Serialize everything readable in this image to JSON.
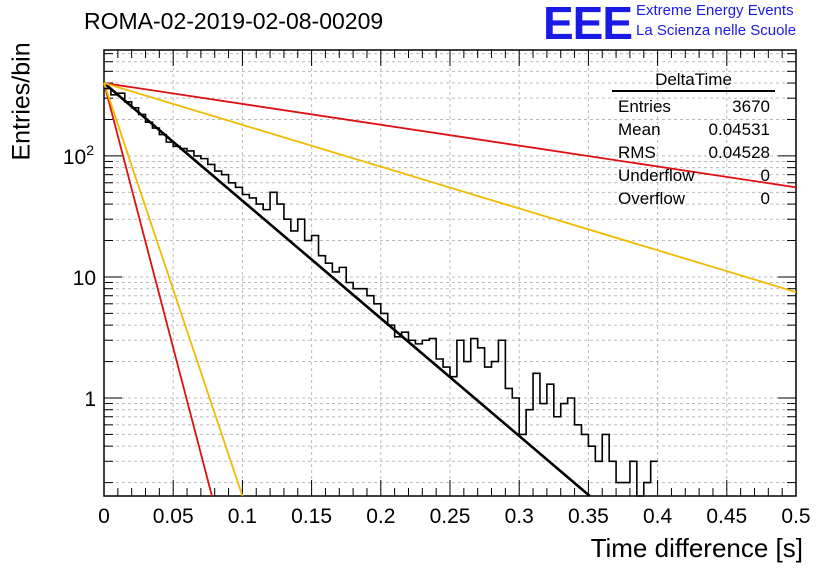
{
  "header": {
    "title": "ROMA-02-2019-02-08-00209",
    "logo": "EEE",
    "logo_line1": "Extreme Energy Events",
    "logo_line2": "La Scienza nelle Scuole"
  },
  "stats": {
    "name": "DeltaTime",
    "rows": [
      {
        "label": "Entries",
        "value": "3670"
      },
      {
        "label": "Mean",
        "value": "0.04531"
      },
      {
        "label": "RMS",
        "value": "0.04528"
      },
      {
        "label": "Underflow",
        "value": "0"
      },
      {
        "label": "Overflow",
        "value": "0"
      }
    ]
  },
  "colors": {
    "histogram": "#000000",
    "fit": "#000000",
    "red": "#dd1111",
    "yellow": "#f0bb00",
    "grid": "#bbbbbb"
  },
  "chart_data": {
    "type": "line",
    "xlabel": "Time difference [s]",
    "ylabel": "Entries/bin",
    "xlim": [
      0,
      0.5
    ],
    "ylim": [
      0.155,
      750
    ],
    "yscale": "log",
    "grid": true,
    "x_ticks": [
      "0",
      "0.05",
      "0.1",
      "0.15",
      "0.2",
      "0.25",
      "0.3",
      "0.35",
      "0.4",
      "0.45",
      "0.5"
    ],
    "y_ticks": [
      "1",
      "10",
      "10^2"
    ],
    "histogram": {
      "bin_width": 0.005,
      "values": [
        360,
        320,
        330,
        280,
        250,
        220,
        190,
        170,
        150,
        130,
        120,
        115,
        110,
        100,
        95,
        85,
        75,
        70,
        60,
        55,
        48,
        45,
        40,
        36,
        50,
        40,
        30,
        24,
        30,
        20,
        22,
        15,
        13,
        11,
        12,
        9,
        8,
        8,
        7,
        6,
        5,
        4,
        3.2,
        3.5,
        3,
        2.8,
        3.0,
        3.1,
        2.1,
        1.8,
        1.5,
        3.0,
        2.0,
        3.1,
        2.6,
        1.8,
        2.0,
        3.0,
        1.2,
        1.0,
        0.5,
        0.8,
        1.6,
        0.9,
        1.3,
        0.7,
        0.9,
        1.0,
        0.6,
        0.5,
        0.4,
        0.3,
        0.5,
        0.3,
        0.2,
        0.2,
        0.3,
        0.1,
        0.2,
        0.3
      ]
    },
    "series": [
      {
        "x": [
          0.0,
          0.351
        ],
        "y": [
          400,
          0.155
        ]
      },
      {
        "x": [
          0.0,
          0.5
        ],
        "y": [
          400,
          55
        ]
      },
      {
        "x": [
          0.0,
          0.5
        ],
        "y": [
          400,
          7.5
        ]
      },
      {
        "x": [
          0.0,
          0.078
        ],
        "y": [
          400,
          0.155
        ]
      },
      {
        "x": [
          0.0,
          0.1
        ],
        "y": [
          400,
          0.155
        ]
      }
    ]
  }
}
